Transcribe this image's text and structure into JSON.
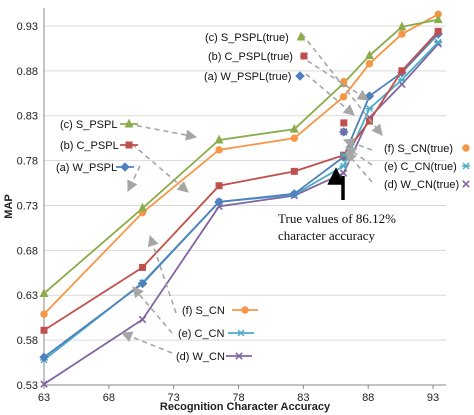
{
  "chart_data": {
    "type": "line",
    "xlabel": "Recognition Character Accuracy",
    "ylabel": "MAP",
    "xlim": [
      63,
      94
    ],
    "ylim": [
      0.53,
      0.95
    ],
    "xticks": [
      "63",
      "68",
      "73",
      "78",
      "83",
      "88",
      "93"
    ],
    "yticks": [
      "0.53",
      "0.58",
      "0.63",
      "0.68",
      "0.73",
      "0.78",
      "0.83",
      "0.88",
      "0.93"
    ],
    "grid": "horizontal",
    "series": [
      {
        "name": "(c) S_PSPL",
        "color": "#8aac4a",
        "marker": "triangle",
        "x": [
          63,
          70.6,
          76.5,
          82.3,
          86.1,
          88.1,
          90.6,
          93.4
        ],
        "y": [
          0.632,
          0.727,
          0.803,
          0.815,
          0.866,
          0.897,
          0.929,
          0.937
        ]
      },
      {
        "name": "(b) C_PSPL",
        "color": "#c0504d",
        "marker": "square",
        "x": [
          63,
          70.6,
          76.5,
          82.3,
          86.1,
          88.1,
          90.6,
          93.4
        ],
        "y": [
          0.591,
          0.661,
          0.752,
          0.768,
          0.786,
          0.824,
          0.88,
          0.924
        ]
      },
      {
        "name": "(a) W_PSPL",
        "color": "#4f81bd",
        "marker": "diamond",
        "x": [
          63,
          70.6,
          76.5,
          82.3,
          86.1,
          88.1,
          90.6,
          93.4
        ],
        "y": [
          0.561,
          0.643,
          0.734,
          0.743,
          0.784,
          0.852,
          0.878,
          0.921
        ]
      },
      {
        "name": "(f) S_CN",
        "color": "#f79646",
        "marker": "circle",
        "x": [
          63,
          70.6,
          76.5,
          82.3,
          86.1,
          88.1,
          90.6,
          93.4
        ],
        "y": [
          0.609,
          0.722,
          0.792,
          0.805,
          0.851,
          0.888,
          0.921,
          0.943
        ]
      },
      {
        "name": "(e) C_CN",
        "color": "#4bacc6",
        "marker": "star",
        "x": [
          63,
          70.6,
          76.5,
          82.3,
          86.1,
          88.1,
          90.6,
          93.4
        ],
        "y": [
          0.558,
          0.644,
          0.734,
          0.742,
          0.774,
          0.838,
          0.87,
          0.912
        ]
      },
      {
        "name": "(d) W_CN",
        "color": "#8064a2",
        "marker": "x",
        "x": [
          63,
          70.6,
          76.5,
          82.3,
          86.1,
          88.1,
          90.6,
          93.4
        ],
        "y": [
          0.531,
          0.603,
          0.729,
          0.741,
          0.766,
          0.828,
          0.865,
          0.91
        ]
      }
    ],
    "true_values": [
      {
        "label": "(c) S_PSPL(true)",
        "x": 86.12,
        "y": 0.866,
        "series": 0
      },
      {
        "label": "(b) C_PSPL(true)",
        "x": 86.12,
        "y": 0.822,
        "series": 1
      },
      {
        "label": "(a) W_PSPL(true)",
        "x": 86.12,
        "y": 0.812,
        "series": 2
      },
      {
        "label": "(f) S_CN(true)",
        "x": 86.12,
        "y": 0.868,
        "series": 3
      },
      {
        "label": "(e) C_CN(true)",
        "x": 86.12,
        "y": 0.786,
        "series": 4
      },
      {
        "label": "(d) W_CN(true)",
        "x": 86.12,
        "y": 0.812,
        "series": 5
      }
    ],
    "annotation": "True values of 86.12% character accuracy",
    "annotation_lines": [
      "True values of 86.12%",
      "character accuracy"
    ]
  }
}
